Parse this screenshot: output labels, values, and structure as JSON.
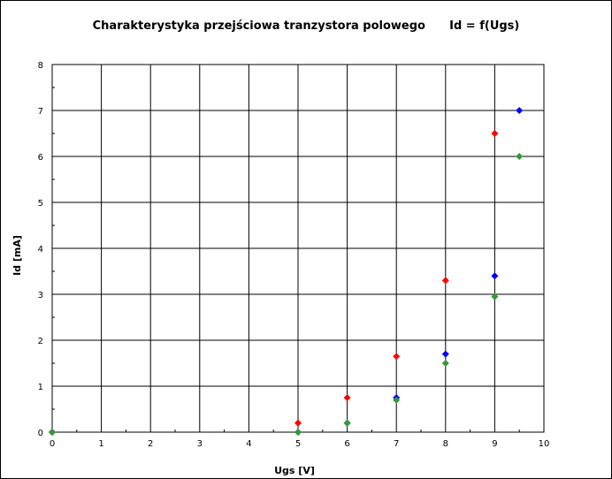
{
  "chart_data": {
    "type": "scatter",
    "title": "Charakterystyka przejściowa tranzystora polowego      Id = f(Ugs)",
    "xlabel": "Ugs [V]",
    "ylabel": "Id [mA]",
    "xlim": [
      0,
      10
    ],
    "ylim": [
      0,
      8
    ],
    "xticks": [
      "0",
      "1",
      "2",
      "3",
      "4",
      "5",
      "6",
      "7",
      "8",
      "9",
      "10"
    ],
    "yticks": [
      "0",
      "1",
      "2",
      "3",
      "4",
      "5",
      "6",
      "7",
      "8"
    ],
    "grid": true,
    "legend": "none",
    "marker": "diamond",
    "series": [
      {
        "color": "#ff0000",
        "points": [
          [
            0,
            0
          ],
          [
            5,
            0.2
          ],
          [
            6,
            0.75
          ],
          [
            7,
            1.65
          ],
          [
            8,
            3.3
          ],
          [
            9,
            6.5
          ]
        ]
      },
      {
        "color": "#0000ff",
        "points": [
          [
            0,
            0
          ],
          [
            5,
            0
          ],
          [
            6,
            0.2
          ],
          [
            7,
            0.75
          ],
          [
            8,
            1.7
          ],
          [
            9,
            3.4
          ],
          [
            9.5,
            7
          ]
        ]
      },
      {
        "color": "#339933",
        "points": [
          [
            0,
            0
          ],
          [
            5,
            0
          ],
          [
            6,
            0.2
          ],
          [
            7,
            0.7
          ],
          [
            8,
            1.5
          ],
          [
            9,
            2.95
          ],
          [
            9.5,
            6
          ]
        ]
      }
    ]
  }
}
